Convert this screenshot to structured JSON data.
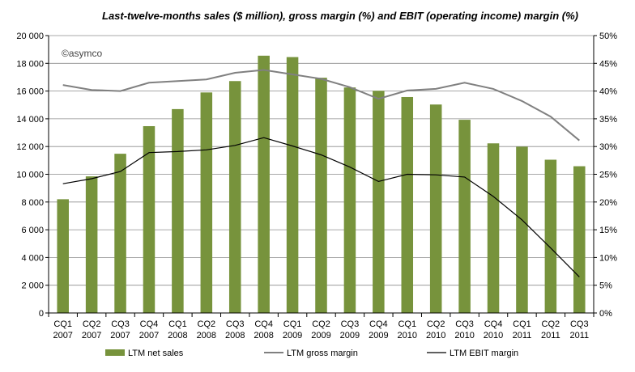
{
  "chart_data": {
    "type": "bar",
    "title": "Last-twelve-months  sales ($ million), gross margin (%) and EBIT (operating income) margin (%)",
    "watermark": "©asymco",
    "categories": [
      [
        "CQ1",
        "2007"
      ],
      [
        "CQ2",
        "2007"
      ],
      [
        "CQ3",
        "2007"
      ],
      [
        "CQ4",
        "2007"
      ],
      [
        "CQ1",
        "2008"
      ],
      [
        "CQ2",
        "2008"
      ],
      [
        "CQ3",
        "2008"
      ],
      [
        "CQ4",
        "2008"
      ],
      [
        "CQ1",
        "2009"
      ],
      [
        "CQ2",
        "2009"
      ],
      [
        "CQ3",
        "2009"
      ],
      [
        "CQ4",
        "2009"
      ],
      [
        "CQ1",
        "2010"
      ],
      [
        "CQ2",
        "2010"
      ],
      [
        "CQ3",
        "2010"
      ],
      [
        "CQ4",
        "2010"
      ],
      [
        "CQ1",
        "2011"
      ],
      [
        "CQ2",
        "2011"
      ],
      [
        "CQ3",
        "2011"
      ]
    ],
    "ylim_left": [
      0,
      20000
    ],
    "yticks_left": [
      "0",
      "2 000",
      "4 000",
      "6 000",
      "8 000",
      "10 000",
      "12 000",
      "14 000",
      "16 000",
      "18 000",
      "20 000"
    ],
    "ylim_right": [
      0,
      50
    ],
    "yticks_right": [
      "0%",
      "5%",
      "10%",
      "15%",
      "20%",
      "25%",
      "30%",
      "35%",
      "40%",
      "45%",
      "50%"
    ],
    "grid": true,
    "legend_position": "bottom",
    "series": [
      {
        "name": "LTM net sales",
        "type": "bar",
        "axis": "left",
        "color": "#77933c",
        "values": [
          8200,
          9850,
          11480,
          13470,
          14700,
          15900,
          16720,
          18550,
          18450,
          16960,
          16260,
          16020,
          15570,
          15030,
          13930,
          12230,
          11990,
          11050,
          10580
        ]
      },
      {
        "name": "LTM gross margin",
        "type": "line",
        "axis": "right",
        "color": "#808080",
        "values": [
          41.1,
          40.2,
          40.0,
          41.5,
          41.8,
          42.1,
          43.3,
          43.8,
          43.0,
          42.2,
          40.7,
          38.6,
          40.1,
          40.4,
          41.5,
          40.4,
          38.2,
          35.4,
          31.1
        ]
      },
      {
        "name": "LTM EBIT margin",
        "type": "line",
        "axis": "right",
        "color": "#000000",
        "values": [
          23.3,
          24.2,
          25.5,
          28.9,
          29.1,
          29.4,
          30.2,
          31.6,
          30.1,
          28.5,
          26.3,
          23.7,
          25.0,
          24.9,
          24.5,
          21.0,
          16.8,
          11.7,
          6.5
        ]
      }
    ]
  }
}
